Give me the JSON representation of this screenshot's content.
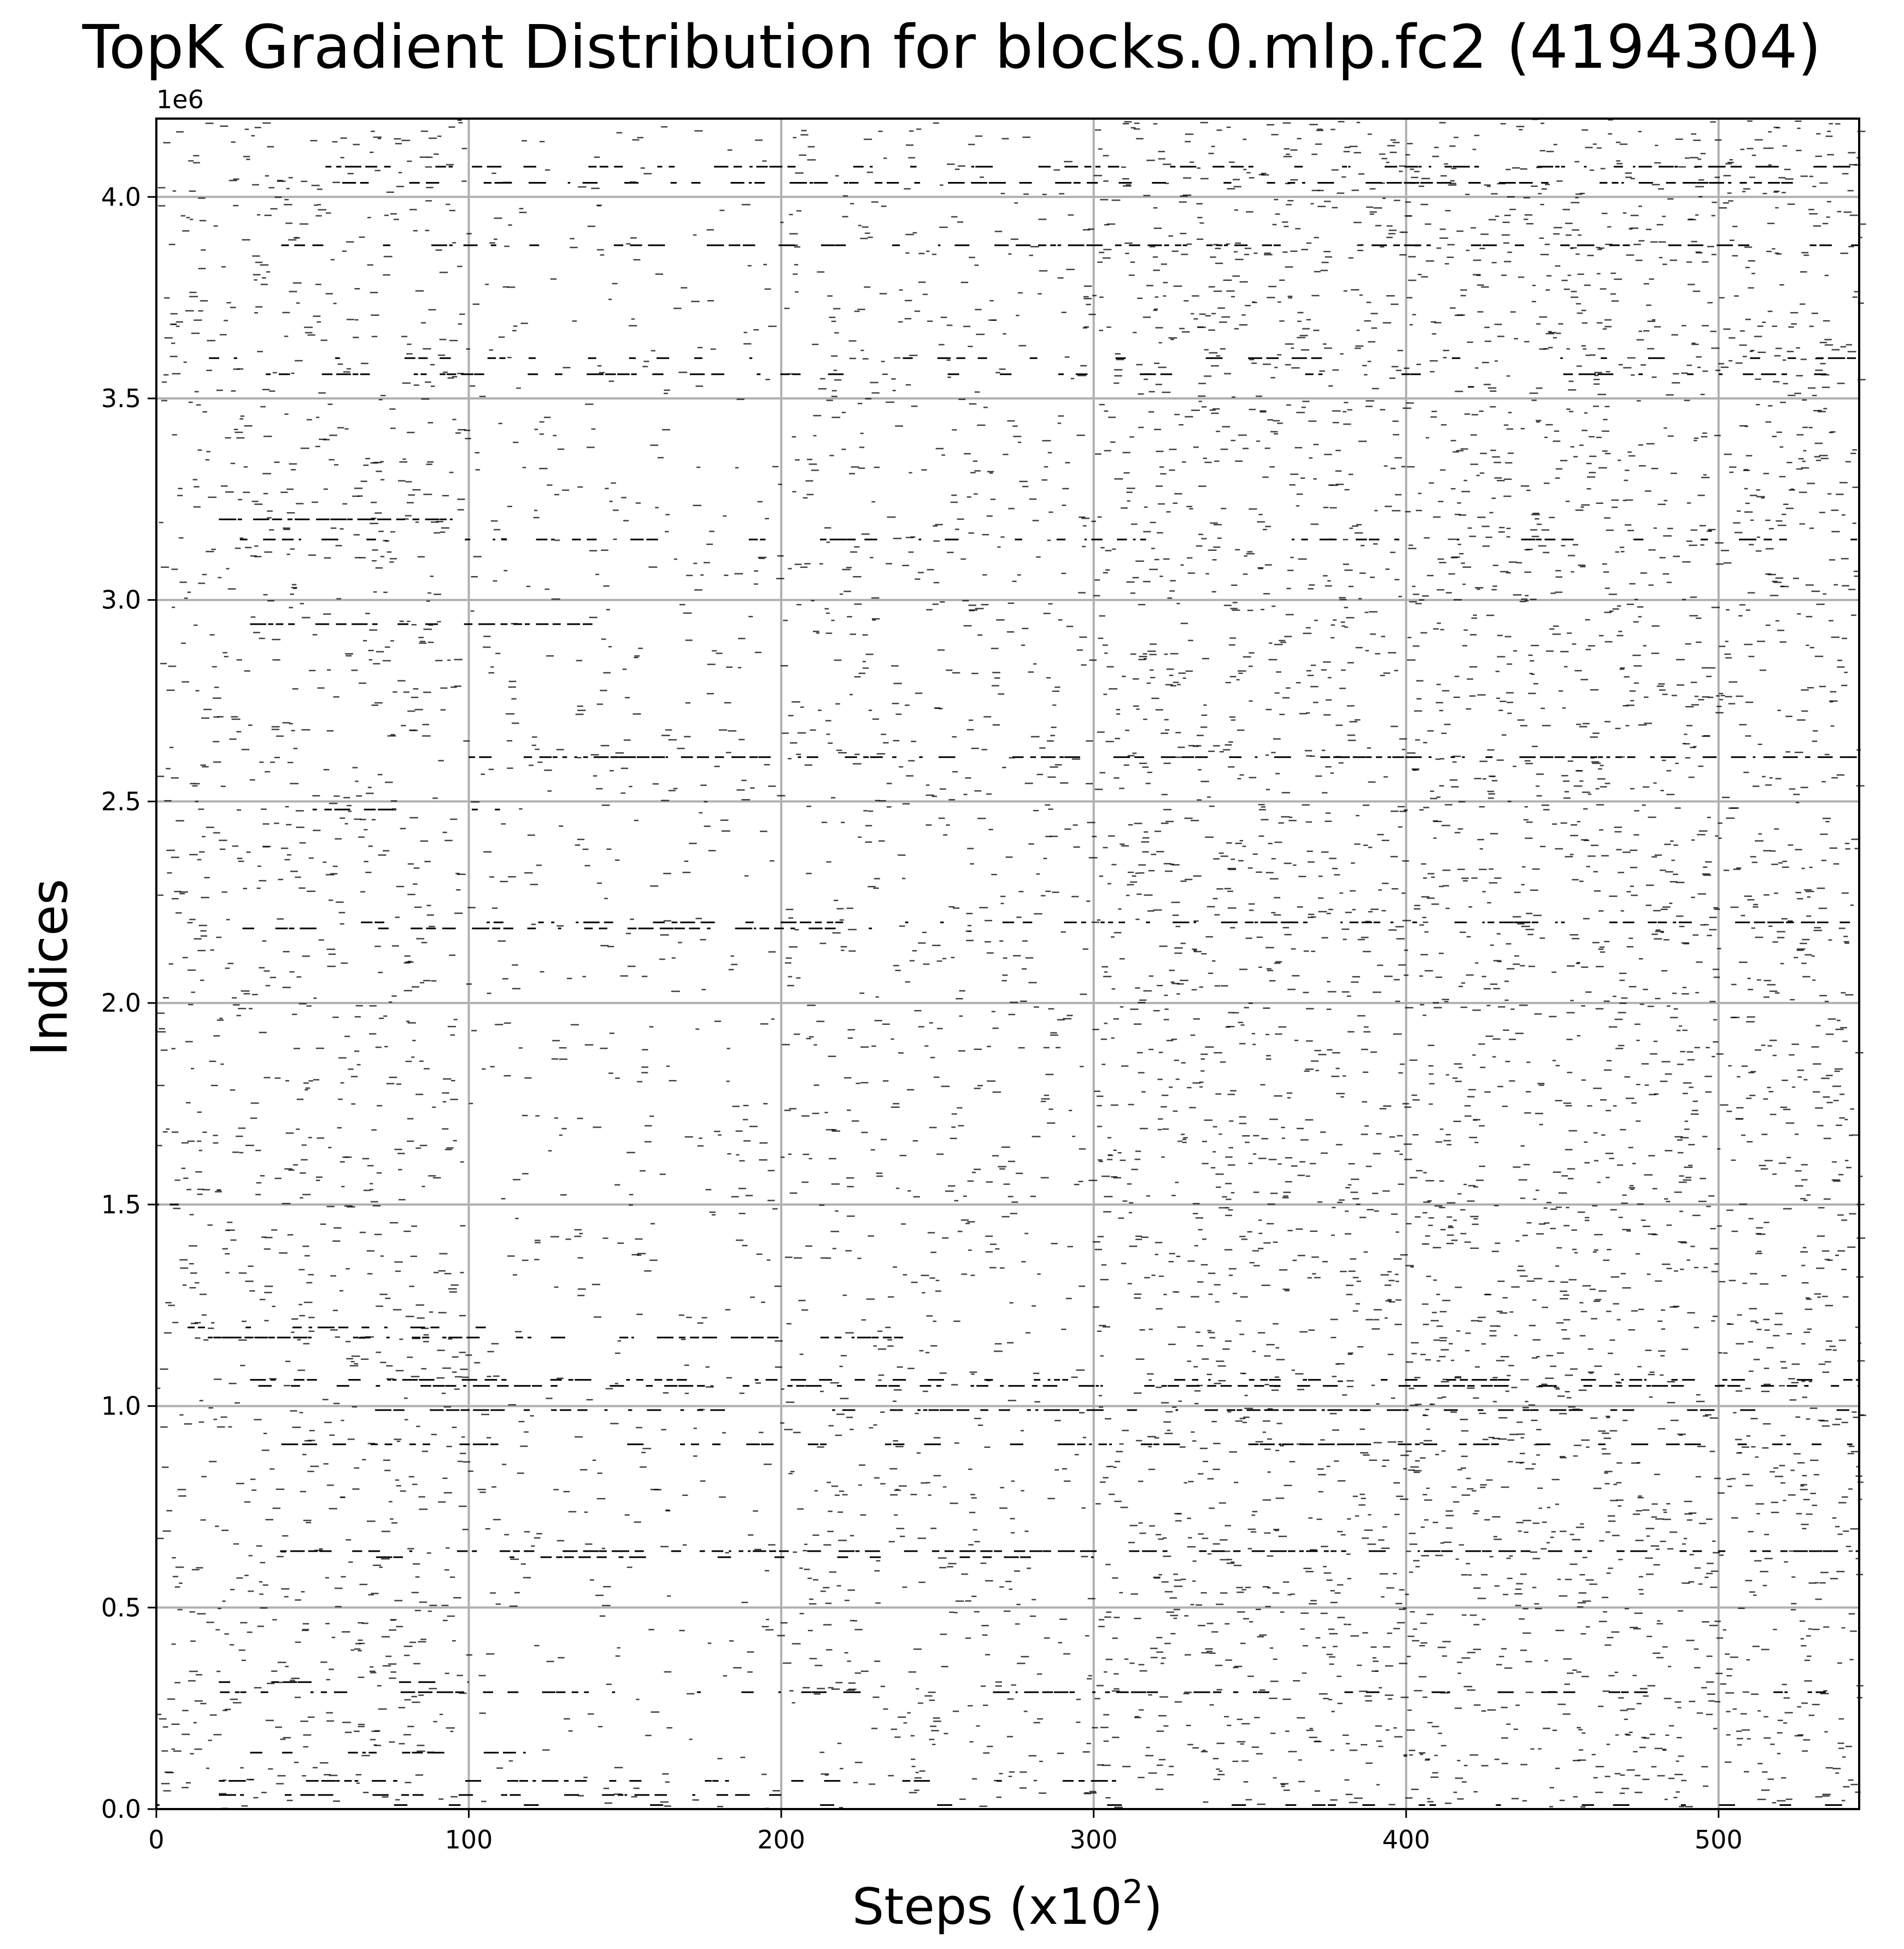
{
  "chart_data": {
    "type": "scatter",
    "title": "TopK Gradient Distribution for blocks.0.mlp.fc2 (4194304)",
    "xlabel_text": "Steps (x10",
    "xlabel_sup": "2",
    "xlabel_close": ")",
    "ylabel": "Indices",
    "y_offset_text": "1e6",
    "xlim": [
      0,
      545
    ],
    "ylim": [
      0,
      4194304
    ],
    "x_ticks": [
      {
        "value": 0,
        "label": "0"
      },
      {
        "value": 100,
        "label": "100"
      },
      {
        "value": 200,
        "label": "200"
      },
      {
        "value": 300,
        "label": "300"
      },
      {
        "value": 400,
        "label": "400"
      },
      {
        "value": 500,
        "label": "500"
      }
    ],
    "y_ticks": [
      {
        "value": 0,
        "label": "0.0"
      },
      {
        "value": 500000,
        "label": "0.5"
      },
      {
        "value": 1000000,
        "label": "1.0"
      },
      {
        "value": 1500000,
        "label": "1.5"
      },
      {
        "value": 2000000,
        "label": "2.0"
      },
      {
        "value": 2500000,
        "label": "2.5"
      },
      {
        "value": 3000000,
        "label": "3.0"
      },
      {
        "value": 3500000,
        "label": "3.5"
      },
      {
        "value": 4000000,
        "label": "4.0"
      }
    ],
    "grid": true,
    "marker_color": "#000000",
    "grid_color": "#b0b0b0",
    "dense_rows": [
      {
        "y": 4075000,
        "x_start": 45,
        "x_end": 545,
        "density": 0.55
      },
      {
        "y": 4035000,
        "x_start": 55,
        "x_end": 540,
        "density": 0.5
      },
      {
        "y": 3880000,
        "x_start": 40,
        "x_end": 545,
        "density": 0.55
      },
      {
        "y": 3600000,
        "x_start": 0,
        "x_end": 545,
        "density": 0.3
      },
      {
        "y": 3560000,
        "x_start": 30,
        "x_end": 545,
        "density": 0.35
      },
      {
        "y": 3200000,
        "x_start": 20,
        "x_end": 95,
        "density": 0.7
      },
      {
        "y": 3150000,
        "x_start": 15,
        "x_end": 545,
        "density": 0.4
      },
      {
        "y": 2940000,
        "x_start": 30,
        "x_end": 140,
        "density": 0.75
      },
      {
        "y": 2610000,
        "x_start": 100,
        "x_end": 545,
        "density": 0.55
      },
      {
        "y": 2480000,
        "x_start": 50,
        "x_end": 110,
        "density": 0.5
      },
      {
        "y": 2200000,
        "x_start": 40,
        "x_end": 545,
        "density": 0.5
      },
      {
        "y": 2185000,
        "x_start": 20,
        "x_end": 230,
        "density": 0.6
      },
      {
        "y": 1500000,
        "x_start": 0,
        "x_end": 20,
        "density": 0.6
      },
      {
        "y": 1195000,
        "x_start": 10,
        "x_end": 110,
        "density": 0.45
      },
      {
        "y": 1170000,
        "x_start": 10,
        "x_end": 240,
        "density": 0.55
      },
      {
        "y": 1065000,
        "x_start": 30,
        "x_end": 545,
        "density": 0.6
      },
      {
        "y": 1050000,
        "x_start": 30,
        "x_end": 545,
        "density": 0.6
      },
      {
        "y": 990000,
        "x_start": 70,
        "x_end": 545,
        "density": 0.55
      },
      {
        "y": 905000,
        "x_start": 40,
        "x_end": 545,
        "density": 0.5
      },
      {
        "y": 640000,
        "x_start": 30,
        "x_end": 545,
        "density": 0.65
      },
      {
        "y": 625000,
        "x_start": 50,
        "x_end": 300,
        "density": 0.3
      },
      {
        "y": 315000,
        "x_start": 20,
        "x_end": 100,
        "density": 0.4
      },
      {
        "y": 290000,
        "x_start": 10,
        "x_end": 545,
        "density": 0.4
      },
      {
        "y": 140000,
        "x_start": 30,
        "x_end": 120,
        "density": 0.5
      },
      {
        "y": 70000,
        "x_start": 20,
        "x_end": 320,
        "density": 0.4
      },
      {
        "y": 35000,
        "x_start": 20,
        "x_end": 200,
        "density": 0.45
      },
      {
        "y": 10000,
        "x_start": 0,
        "x_end": 545,
        "density": 0.25
      }
    ],
    "scatter_density": [
      {
        "x_start": 0,
        "x_end": 100,
        "count": 1300
      },
      {
        "x_start": 100,
        "x_end": 200,
        "count": 600
      },
      {
        "x_start": 200,
        "x_end": 300,
        "count": 1000
      },
      {
        "x_start": 300,
        "x_end": 400,
        "count": 1700
      },
      {
        "x_start": 400,
        "x_end": 545,
        "count": 2600
      }
    ]
  }
}
